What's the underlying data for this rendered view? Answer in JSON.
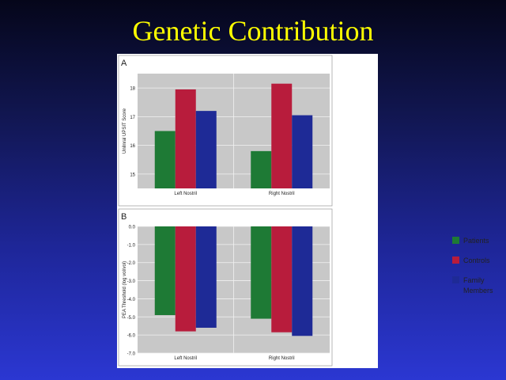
{
  "slide": {
    "title": "Genetic Contribution"
  },
  "legend": [
    {
      "label": "Patients",
      "color": "#1e7a35"
    },
    {
      "label": "Controls",
      "color": "#b81c3c"
    },
    {
      "label": "Family Members",
      "color": "#1e2a96"
    }
  ],
  "chart_data": [
    {
      "type": "bar",
      "panel_label": "A",
      "categories": [
        "Left Nostril",
        "Right Nostril"
      ],
      "series": [
        {
          "name": "Patients",
          "values": [
            16.5,
            15.8
          ]
        },
        {
          "name": "Controls",
          "values": [
            17.95,
            18.15
          ]
        },
        {
          "name": "Family Members",
          "values": [
            17.2,
            17.05
          ]
        }
      ],
      "ylabel": "Unilnral UPSIT Score",
      "ylim": [
        14.5,
        18.5
      ],
      "yticks": [
        15,
        16,
        17,
        18
      ],
      "ytick_labels": [
        "15",
        "16",
        "17",
        "18"
      ],
      "grid": true
    },
    {
      "type": "bar",
      "panel_label": "B",
      "categories": [
        "Left Nostril",
        "Right Nostril"
      ],
      "series": [
        {
          "name": "Patients",
          "values": [
            -4.9,
            -5.1
          ]
        },
        {
          "name": "Controls",
          "values": [
            -5.8,
            -5.85
          ]
        },
        {
          "name": "Family Members",
          "values": [
            -5.6,
            -6.05
          ]
        }
      ],
      "ylabel": "PEA Threshold (log vol/vol)",
      "ylim": [
        -7.0,
        0.0
      ],
      "yticks": [
        0,
        -1,
        -2,
        -3,
        -4,
        -5,
        -6,
        -7
      ],
      "ytick_labels": [
        "0.0",
        "-1.0",
        "-2.0",
        "-3.0",
        "-4.0",
        "-5.0",
        "-6.0",
        "-7.0"
      ],
      "grid": true
    }
  ]
}
